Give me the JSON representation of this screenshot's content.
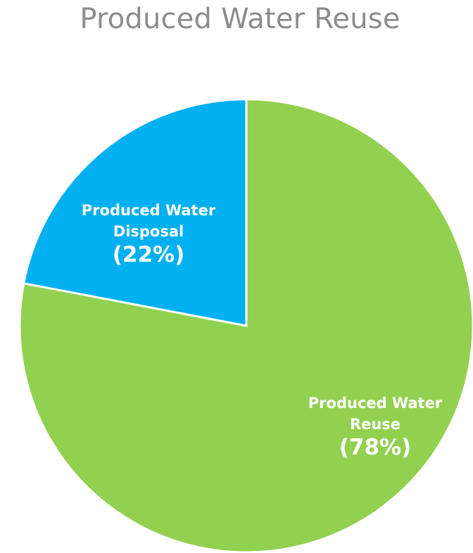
{
  "chart_data": {
    "type": "pie",
    "title": "Produced Water Reuse",
    "slices": [
      {
        "label_lines": [
          "Produced Water",
          "Reuse"
        ],
        "percent_label": "(78%)",
        "value": 78,
        "color": "#92d050"
      },
      {
        "label_lines": [
          "Produced Water",
          "Disposal"
        ],
        "percent_label": "(22%)",
        "value": 22,
        "color": "#00b0f0"
      }
    ],
    "start_angle_deg": 0,
    "direction": "clockwise",
    "legend": "none"
  }
}
